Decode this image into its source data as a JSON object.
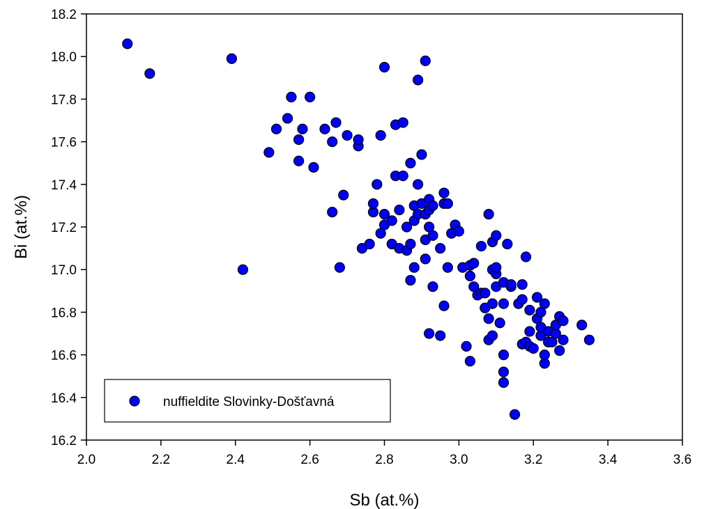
{
  "chart_data": {
    "type": "scatter",
    "xlabel": "Sb (at.%)",
    "ylabel": "Bi (at.%)",
    "xlim": [
      2.0,
      3.6
    ],
    "ylim": [
      16.2,
      18.2
    ],
    "xticks": [
      "2.0",
      "2.2",
      "2.4",
      "2.6",
      "2.8",
      "3.0",
      "3.2",
      "3.4",
      "3.6"
    ],
    "yticks": [
      "16.2",
      "16.4",
      "16.6",
      "16.8",
      "17.0",
      "17.2",
      "17.4",
      "17.6",
      "17.8",
      "18.0",
      "18.2"
    ],
    "grid": false,
    "legend_position": "bottom-left",
    "marker_color": "#0000ff",
    "series": [
      {
        "name": "nuffieldite Slovinky-Došťavná",
        "points": [
          [
            2.11,
            18.06
          ],
          [
            2.17,
            17.92
          ],
          [
            2.39,
            17.99
          ],
          [
            2.42,
            17.0
          ],
          [
            2.49,
            17.55
          ],
          [
            2.51,
            17.66
          ],
          [
            2.54,
            17.71
          ],
          [
            2.55,
            17.81
          ],
          [
            2.57,
            17.51
          ],
          [
            2.57,
            17.61
          ],
          [
            2.58,
            17.66
          ],
          [
            2.6,
            17.81
          ],
          [
            2.61,
            17.48
          ],
          [
            2.64,
            17.66
          ],
          [
            2.66,
            17.27
          ],
          [
            2.66,
            17.6
          ],
          [
            2.67,
            17.69
          ],
          [
            2.68,
            17.01
          ],
          [
            2.69,
            17.35
          ],
          [
            2.7,
            17.63
          ],
          [
            2.73,
            17.58
          ],
          [
            2.73,
            17.61
          ],
          [
            2.74,
            17.1
          ],
          [
            2.76,
            17.12
          ],
          [
            2.77,
            17.27
          ],
          [
            2.77,
            17.31
          ],
          [
            2.78,
            17.4
          ],
          [
            2.79,
            17.17
          ],
          [
            2.79,
            17.63
          ],
          [
            2.8,
            17.21
          ],
          [
            2.8,
            17.26
          ],
          [
            2.8,
            17.95
          ],
          [
            2.82,
            17.12
          ],
          [
            2.82,
            17.23
          ],
          [
            2.83,
            17.44
          ],
          [
            2.83,
            17.68
          ],
          [
            2.84,
            17.1
          ],
          [
            2.84,
            17.28
          ],
          [
            2.85,
            17.44
          ],
          [
            2.85,
            17.69
          ],
          [
            2.86,
            17.09
          ],
          [
            2.86,
            17.2
          ],
          [
            2.87,
            17.12
          ],
          [
            2.87,
            17.5
          ],
          [
            2.87,
            16.95
          ],
          [
            2.88,
            17.01
          ],
          [
            2.88,
            17.23
          ],
          [
            2.88,
            17.3
          ],
          [
            2.89,
            17.26
          ],
          [
            2.89,
            17.4
          ],
          [
            2.89,
            17.89
          ],
          [
            2.9,
            17.31
          ],
          [
            2.9,
            17.54
          ],
          [
            2.91,
            17.05
          ],
          [
            2.91,
            17.14
          ],
          [
            2.91,
            17.26
          ],
          [
            2.91,
            17.98
          ],
          [
            2.92,
            16.7
          ],
          [
            2.92,
            17.2
          ],
          [
            2.92,
            17.28
          ],
          [
            2.92,
            17.33
          ],
          [
            2.93,
            16.92
          ],
          [
            2.93,
            17.16
          ],
          [
            2.93,
            17.3
          ],
          [
            2.95,
            16.69
          ],
          [
            2.95,
            17.1
          ],
          [
            2.96,
            16.83
          ],
          [
            2.96,
            17.31
          ],
          [
            2.96,
            17.36
          ],
          [
            2.97,
            17.01
          ],
          [
            2.97,
            17.31
          ],
          [
            2.98,
            17.17
          ],
          [
            2.99,
            17.21
          ],
          [
            3.0,
            17.18
          ],
          [
            3.01,
            17.01
          ],
          [
            3.02,
            16.64
          ],
          [
            3.03,
            16.57
          ],
          [
            3.03,
            16.97
          ],
          [
            3.03,
            17.02
          ],
          [
            3.04,
            16.92
          ],
          [
            3.04,
            17.03
          ],
          [
            3.05,
            16.88
          ],
          [
            3.06,
            16.89
          ],
          [
            3.06,
            17.11
          ],
          [
            3.07,
            16.82
          ],
          [
            3.07,
            16.89
          ],
          [
            3.08,
            16.67
          ],
          [
            3.08,
            16.77
          ],
          [
            3.08,
            17.26
          ],
          [
            3.09,
            16.69
          ],
          [
            3.09,
            16.84
          ],
          [
            3.09,
            17.0
          ],
          [
            3.09,
            17.13
          ],
          [
            3.1,
            16.92
          ],
          [
            3.1,
            16.98
          ],
          [
            3.1,
            17.01
          ],
          [
            3.1,
            17.16
          ],
          [
            3.11,
            16.75
          ],
          [
            3.12,
            16.47
          ],
          [
            3.12,
            16.52
          ],
          [
            3.12,
            16.6
          ],
          [
            3.12,
            16.84
          ],
          [
            3.12,
            16.94
          ],
          [
            3.13,
            17.12
          ],
          [
            3.14,
            16.92
          ],
          [
            3.14,
            16.93
          ],
          [
            3.15,
            16.32
          ],
          [
            3.16,
            16.84
          ],
          [
            3.17,
            16.65
          ],
          [
            3.17,
            16.86
          ],
          [
            3.17,
            16.93
          ],
          [
            3.18,
            16.66
          ],
          [
            3.18,
            17.06
          ],
          [
            3.19,
            16.64
          ],
          [
            3.19,
            16.71
          ],
          [
            3.19,
            16.81
          ],
          [
            3.2,
            16.63
          ],
          [
            3.21,
            16.77
          ],
          [
            3.21,
            16.87
          ],
          [
            3.22,
            16.69
          ],
          [
            3.22,
            16.73
          ],
          [
            3.22,
            16.8
          ],
          [
            3.23,
            16.56
          ],
          [
            3.23,
            16.6
          ],
          [
            3.23,
            16.84
          ],
          [
            3.24,
            16.66
          ],
          [
            3.24,
            16.71
          ],
          [
            3.25,
            16.66
          ],
          [
            3.26,
            16.7
          ],
          [
            3.26,
            16.74
          ],
          [
            3.27,
            16.78
          ],
          [
            3.27,
            16.62
          ],
          [
            3.28,
            16.67
          ],
          [
            3.28,
            16.76
          ],
          [
            3.33,
            16.74
          ],
          [
            3.35,
            16.67
          ]
        ]
      }
    ]
  }
}
